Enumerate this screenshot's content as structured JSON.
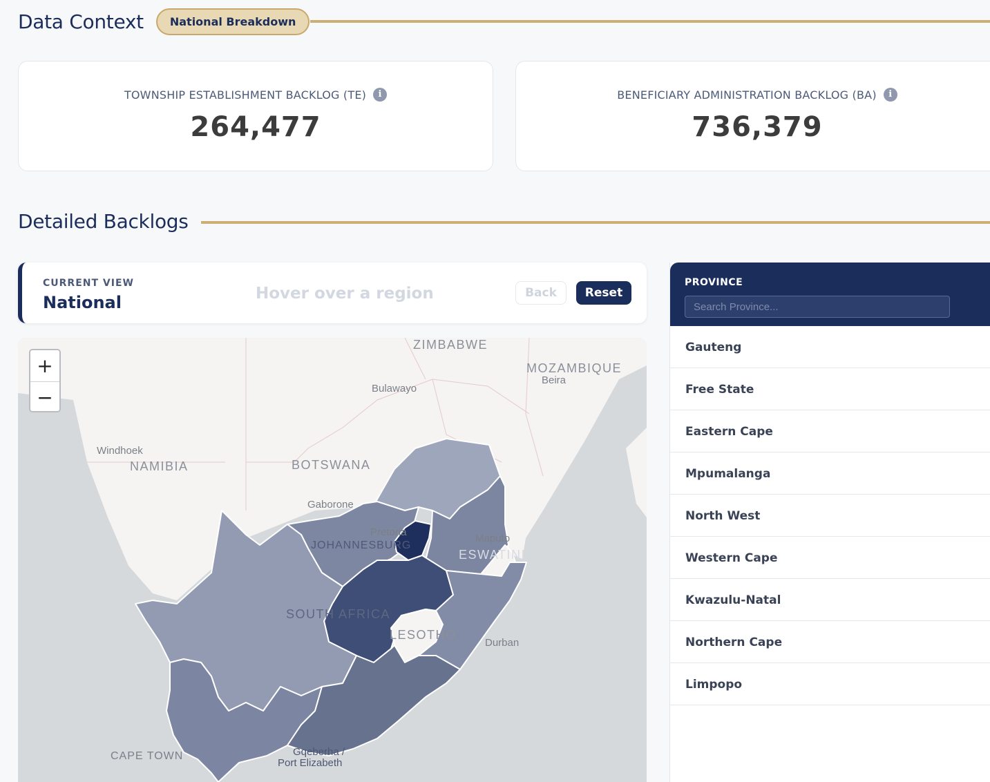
{
  "data_context": {
    "title": "Data Context",
    "badge": "National Breakdown"
  },
  "cards": [
    {
      "label": "TOWNSHIP ESTABLISHMENT BACKLOG (TE)",
      "value": "264,477",
      "icon": "info-icon"
    },
    {
      "label": "BENEFICIARY ADMINISTRATION BACKLOG (BA)",
      "value": "736,379",
      "icon": "info-icon"
    }
  ],
  "detailed": {
    "title": "Detailed Backlogs"
  },
  "view_bar": {
    "current_view_label": "CURRENT VIEW",
    "current_view_value": "National",
    "hover_hint": "Hover over a region",
    "back_label": "Back",
    "reset_label": "Reset"
  },
  "map": {
    "zoom_in": "+",
    "zoom_out": "−",
    "countries": [
      "ZIMBABWE",
      "MOZAMBIQUE",
      "NAMIBIA",
      "BOTSWANA",
      "SOUTH AFRICA",
      "LESOTHO",
      "ESWATINI"
    ],
    "cities": [
      "Bulawayo",
      "Beira",
      "Windhoek",
      "Gaborone",
      "Pretoria",
      "JOHANNESBURG",
      "Maputo",
      "Durban",
      "CAPE TOWN",
      "Gqeberha /",
      "Port Elizabeth"
    ],
    "colors": {
      "limpopo": "#9ea6bc",
      "north_west": "#7e87a2",
      "gauteng": "#1e2f5e",
      "mpumalanga": "#7d86a1",
      "free_state": "#3e4e77",
      "kwazulu_natal": "#838ca6",
      "northern_cape": "#939bb3",
      "western_cape": "#7c86a2",
      "eastern_cape": "#67728f"
    }
  },
  "province_panel": {
    "title": "PROVINCE",
    "search_placeholder": "Search Province...",
    "items": [
      "Gauteng",
      "Free State",
      "Eastern Cape",
      "Mpumalanga",
      "North West",
      "Western Cape",
      "Kwazulu-Natal",
      "Northern Cape",
      "Limpopo"
    ]
  }
}
